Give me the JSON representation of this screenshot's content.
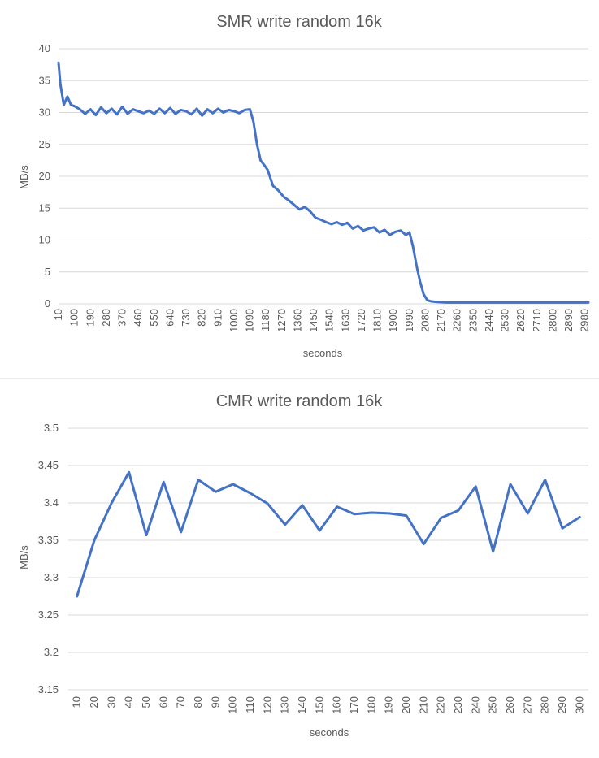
{
  "colors": {
    "series": "#4472c4",
    "grid": "#d9d9d9",
    "text": "#595959"
  },
  "chart_data": [
    {
      "type": "line",
      "title": "SMR write random 16k",
      "xlabel": "seconds",
      "ylabel": "MB/s",
      "ylim": [
        0,
        40
      ],
      "yticks": [
        "0",
        "5",
        "10",
        "15",
        "20",
        "25",
        "30",
        "35",
        "40"
      ],
      "xticks": [
        "10",
        "100",
        "190",
        "280",
        "370",
        "460",
        "550",
        "640",
        "730",
        "820",
        "910",
        "1000",
        "1090",
        "1180",
        "1270",
        "1360",
        "1450",
        "1540",
        "1630",
        "1720",
        "1810",
        "1900",
        "1990",
        "2080",
        "2170",
        "2260",
        "2350",
        "2440",
        "2530",
        "2620",
        "2710",
        "2800",
        "2890",
        "2980"
      ],
      "xlim": [
        10,
        3000
      ],
      "grid": true,
      "series": [
        {
          "x": [
            10,
            20,
            40,
            60,
            80,
            100,
            130,
            160,
            190,
            220,
            250,
            280,
            310,
            340,
            370,
            400,
            430,
            460,
            490,
            520,
            550,
            580,
            610,
            640,
            670,
            700,
            730,
            760,
            790,
            820,
            850,
            880,
            910,
            940,
            970,
            1000,
            1030,
            1060,
            1090,
            1110,
            1130,
            1150,
            1170,
            1190,
            1220,
            1250,
            1280,
            1310,
            1340,
            1370,
            1400,
            1430,
            1460,
            1490,
            1520,
            1550,
            1580,
            1610,
            1640,
            1670,
            1700,
            1730,
            1760,
            1790,
            1820,
            1850,
            1880,
            1910,
            1940,
            1970,
            1990,
            2010,
            2030,
            2050,
            2070,
            2090,
            2110,
            2140,
            2200,
            2260,
            2320,
            2400,
            2500,
            2600,
            2700,
            2800,
            2900,
            3000
          ],
          "y": [
            37.8,
            34.5,
            31.2,
            32.5,
            31.2,
            31.0,
            30.5,
            29.8,
            30.5,
            29.6,
            30.8,
            29.9,
            30.6,
            29.7,
            30.9,
            29.8,
            30.5,
            30.2,
            29.9,
            30.3,
            29.8,
            30.6,
            29.9,
            30.7,
            29.8,
            30.4,
            30.2,
            29.7,
            30.6,
            29.5,
            30.5,
            29.9,
            30.6,
            30.0,
            30.4,
            30.2,
            29.9,
            30.4,
            30.5,
            28.5,
            25.0,
            22.5,
            21.8,
            21.0,
            18.5,
            17.8,
            16.8,
            16.2,
            15.5,
            14.8,
            15.2,
            14.5,
            13.5,
            13.2,
            12.8,
            12.5,
            12.8,
            12.4,
            12.7,
            11.8,
            12.2,
            11.5,
            11.8,
            12.0,
            11.2,
            11.6,
            10.8,
            11.3,
            11.5,
            10.8,
            11.2,
            9.0,
            6.0,
            3.5,
            1.5,
            0.6,
            0.4,
            0.3,
            0.2,
            0.2,
            0.2,
            0.2,
            0.2,
            0.2,
            0.2,
            0.2,
            0.2,
            0.2
          ]
        }
      ]
    },
    {
      "type": "line",
      "title": "CMR write random 16k",
      "xlabel": "seconds",
      "ylabel": "MB/s",
      "ylim": [
        3.15,
        3.5
      ],
      "yticks": [
        "3.15",
        "3.2",
        "3.25",
        "3.3",
        "3.35",
        "3.4",
        "3.45",
        "3.5"
      ],
      "categories": [
        "10",
        "20",
        "30",
        "40",
        "50",
        "60",
        "70",
        "80",
        "90",
        "100",
        "110",
        "120",
        "130",
        "140",
        "150",
        "160",
        "170",
        "180",
        "190",
        "200",
        "210",
        "220",
        "230",
        "240",
        "250",
        "260",
        "270",
        "280",
        "290",
        "300"
      ],
      "grid": true,
      "series": [
        {
          "values": [
            3.275,
            3.35,
            3.4,
            3.441,
            3.357,
            3.428,
            3.361,
            3.431,
            3.415,
            3.425,
            3.413,
            3.399,
            3.371,
            3.397,
            3.363,
            3.395,
            3.385,
            3.387,
            3.386,
            3.383,
            3.345,
            3.38,
            3.39,
            3.422,
            3.335,
            3.425,
            3.386,
            3.431,
            3.366,
            3.381
          ]
        }
      ]
    }
  ]
}
